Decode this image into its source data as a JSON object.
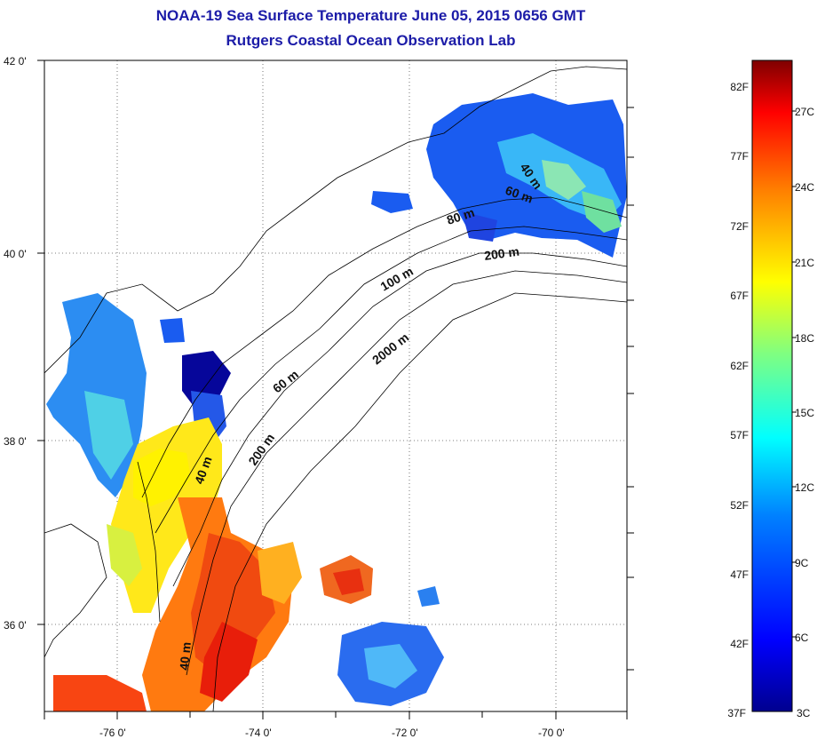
{
  "title": "NOAA-19 Sea Surface Temperature June 05, 2015 0656 GMT",
  "subtitle": "Rutgers Coastal Ocean Observation Lab",
  "map": {
    "lat_ticks": [
      "42 0'",
      "40 0'",
      "38 0'",
      "36 0'"
    ],
    "lon_ticks": [
      "-76 0'",
      "-74 0'",
      "-72 0'",
      "-70 0'"
    ],
    "grid": true,
    "contour_labels": [
      "40 m",
      "60 m",
      "80 m",
      "200 m",
      "100 m",
      "2000 m",
      "60 m",
      "40 m",
      "200 m",
      "40 m"
    ]
  },
  "colorbar": {
    "fahrenheit": [
      "82F",
      "77F",
      "72F",
      "67F",
      "62F",
      "57F",
      "52F",
      "47F",
      "42F",
      "37F"
    ],
    "celsius": [
      "27C",
      "24C",
      "21C",
      "18C",
      "15C",
      "12C",
      "9C",
      "6C",
      "3C"
    ],
    "colors": [
      "#7f0000",
      "#ff0000",
      "#ff8000",
      "#ffff00",
      "#80ff80",
      "#00ffff",
      "#0080ff",
      "#0000ff",
      "#00008f"
    ]
  }
}
